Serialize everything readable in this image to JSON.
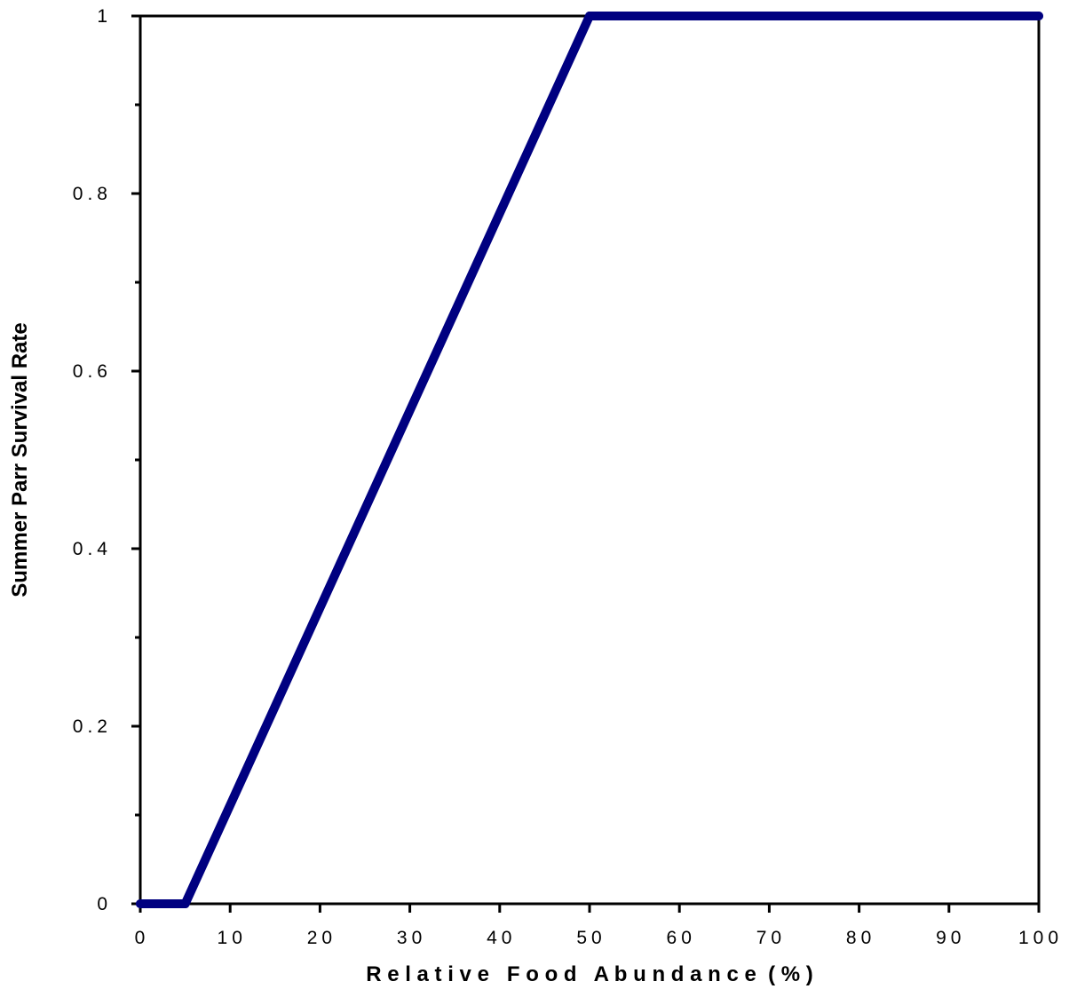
{
  "chart_data": {
    "type": "line",
    "title": "",
    "xlabel": "R e l a t i v e   F o o d   A b u n d a n c e  ( % )",
    "ylabel": "Summer Parr Survival Rate",
    "xlim": [
      0,
      100
    ],
    "ylim": [
      0,
      1
    ],
    "grid": false,
    "legend": "none",
    "x_ticks": [
      0,
      10,
      20,
      30,
      40,
      50,
      60,
      70,
      80,
      90,
      100
    ],
    "x_tick_labels": [
      "0",
      "10",
      "20",
      "30",
      "40",
      "50",
      "60",
      "70",
      "80",
      "90",
      "100"
    ],
    "y_ticks": [
      0,
      0.2,
      0.4,
      0.6,
      0.8,
      1
    ],
    "y_tick_labels": [
      "0",
      "0.2",
      "0.4",
      "0.6",
      "0.8",
      "1"
    ],
    "y_minor_ticks": [
      0.1,
      0.3,
      0.5,
      0.7,
      0.9
    ],
    "series": [
      {
        "color": "#000080",
        "x": [
          0,
          5,
          50,
          100
        ],
        "y": [
          0,
          0,
          1,
          1
        ]
      }
    ]
  }
}
